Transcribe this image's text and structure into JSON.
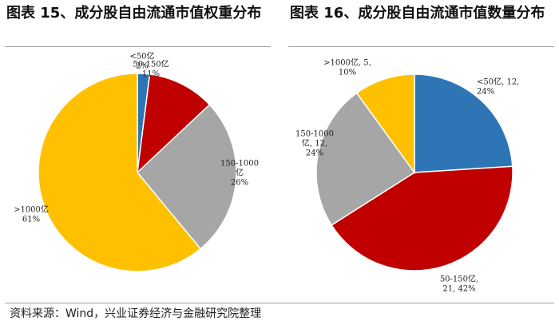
{
  "chart_data": [
    {
      "type": "pie",
      "title": "图表 15、成分股自由流通市值权重分布",
      "slices": [
        {
          "label": "<50亿",
          "value": 2,
          "lines": [
            "<50亿",
            "2%"
          ],
          "color": "#2e75b6"
        },
        {
          "label": "50-150亿",
          "value": 11,
          "lines": [
            "50-150亿",
            "11%"
          ],
          "color": "#c00000"
        },
        {
          "label": "150-1000亿",
          "value": 26,
          "lines": [
            "150-1000",
            "亿",
            "26%"
          ],
          "color": "#a6a6a6"
        },
        {
          "label": ">1000亿",
          "value": 61,
          "lines": [
            ">1000亿",
            "61%"
          ],
          "color": "#ffc000"
        }
      ]
    },
    {
      "type": "pie",
      "title": "图表 16、成分股自由流通市值数量分布",
      "slices": [
        {
          "label": "<50亿",
          "value": 12,
          "percent": 24,
          "lines": [
            "<50亿, 12,",
            "24%"
          ],
          "color": "#2e75b6"
        },
        {
          "label": "50-150亿",
          "value": 21,
          "percent": 42,
          "lines": [
            "50-150亿,",
            "21, 42%"
          ],
          "color": "#c00000"
        },
        {
          "label": "150-1000亿",
          "value": 12,
          "percent": 24,
          "lines": [
            "150-1000",
            "亿, 12,",
            "24%"
          ],
          "color": "#a6a6a6"
        },
        {
          "label": ">1000亿",
          "value": 5,
          "percent": 10,
          "lines": [
            ">1000亿, 5,",
            "10%"
          ],
          "color": "#ffc000"
        }
      ]
    }
  ],
  "footer": {
    "source": "资料来源：Wind，兴业证券经济与金融研究院整理"
  }
}
